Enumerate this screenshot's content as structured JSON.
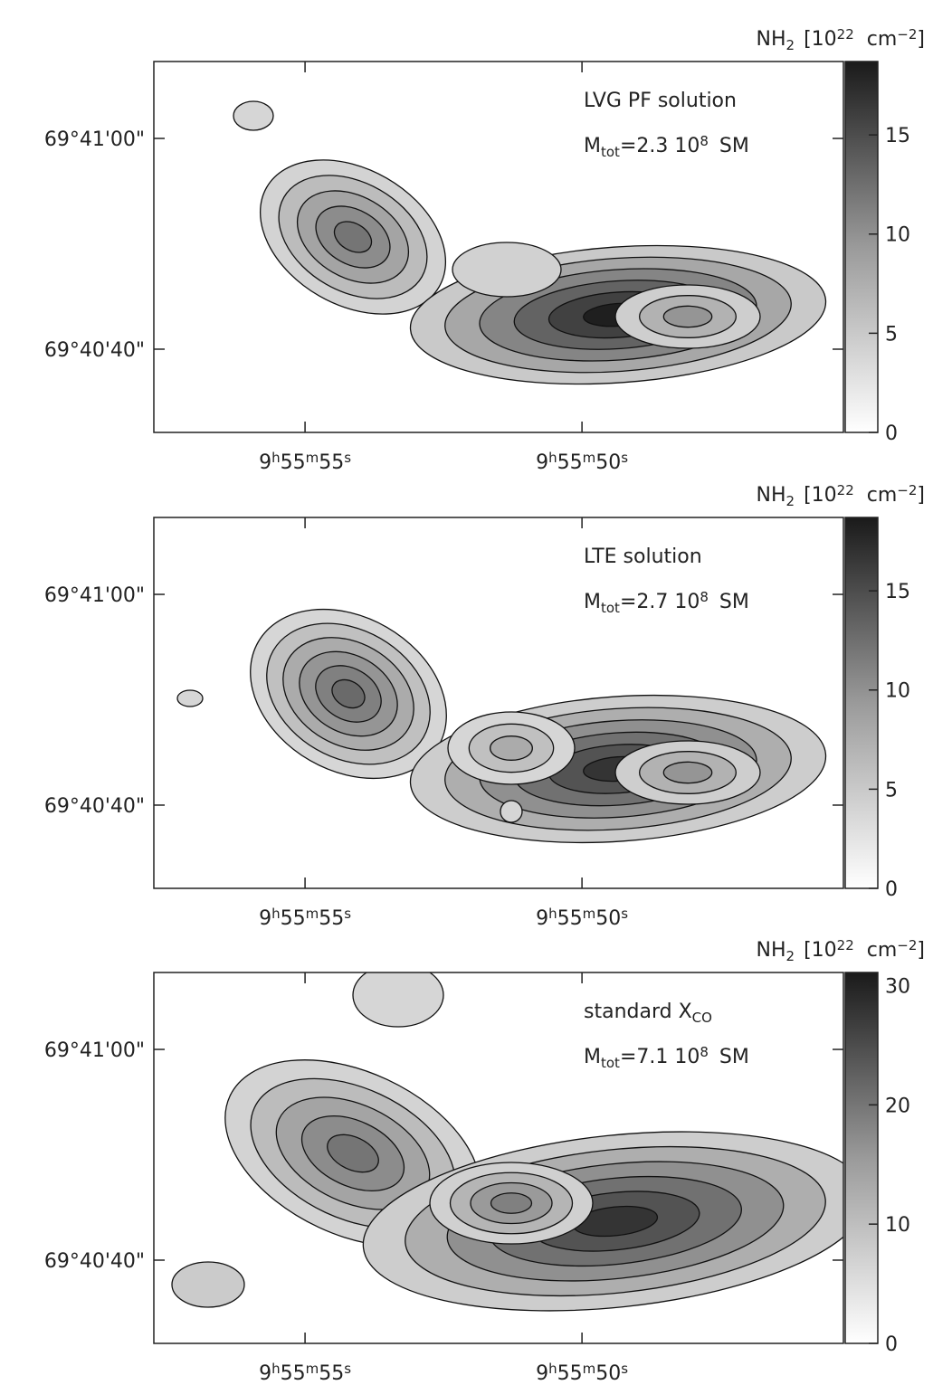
{
  "chart_data": [
    {
      "type": "contour",
      "title": "LVG PF solution",
      "mass": {
        "symbol": "M",
        "subscript": "tot",
        "value": "=2.3 10",
        "exponent": "8",
        "unit": "SM"
      },
      "colorbar_label": {
        "symbol": "NH",
        "subscript": "2",
        "open": "[10",
        "exponent": "22",
        "unit": "cm",
        "unit_exponent": "−2",
        "close": "]"
      },
      "xlim": [
        57.73,
        45.28
      ],
      "xticks": [
        {
          "value": 55,
          "label": [
            "9",
            "h",
            "55",
            "m",
            "55",
            "s"
          ]
        },
        {
          "value": 50,
          "label": [
            "9",
            "h",
            "55",
            "m",
            "50",
            "s"
          ]
        }
      ],
      "ylim": [
        32.1,
        67.3
      ],
      "yticks": [
        {
          "value": 40,
          "label": "69°40'40\""
        },
        {
          "value": 60,
          "label": "69°41'00\""
        }
      ],
      "clim": [
        0,
        18.7
      ],
      "cticks": [
        0,
        5,
        10,
        15
      ]
    },
    {
      "type": "contour",
      "title": "LTE solution",
      "mass": {
        "symbol": "M",
        "subscript": "tot",
        "value": "=2.7 10",
        "exponent": "8",
        "unit": "SM"
      },
      "colorbar_label": {
        "symbol": "NH",
        "subscript": "2",
        "open": "[10",
        "exponent": "22",
        "unit": "cm",
        "unit_exponent": "−2",
        "close": "]"
      },
      "xlim": [
        57.73,
        45.28
      ],
      "xticks": [
        {
          "value": 55,
          "label": [
            "9",
            "h",
            "55",
            "m",
            "55",
            "s"
          ]
        },
        {
          "value": 50,
          "label": [
            "9",
            "h",
            "55",
            "m",
            "50",
            "s"
          ]
        }
      ],
      "ylim": [
        32.1,
        67.3
      ],
      "yticks": [
        {
          "value": 40,
          "label": "69°40'40\""
        },
        {
          "value": 60,
          "label": "69°41'00\""
        }
      ],
      "clim": [
        0,
        18.7
      ],
      "cticks": [
        0,
        5,
        10,
        15
      ]
    },
    {
      "type": "contour",
      "title": "standard X",
      "title_subscript": "CO",
      "mass": {
        "symbol": "M",
        "subscript": "tot",
        "value": "=7.1 10",
        "exponent": "8",
        "unit": "SM"
      },
      "colorbar_label": {
        "symbol": "NH",
        "subscript": "2",
        "open": "[10",
        "exponent": "22",
        "unit": "cm",
        "unit_exponent": "−2",
        "close": "]"
      },
      "xlim": [
        57.73,
        45.28
      ],
      "xticks": [
        {
          "value": 55,
          "label": [
            "9",
            "h",
            "55",
            "m",
            "55",
            "s"
          ]
        },
        {
          "value": 50,
          "label": [
            "9",
            "h",
            "55",
            "m",
            "50",
            "s"
          ]
        }
      ],
      "ylim": [
        32.1,
        67.3
      ],
      "yticks": [
        {
          "value": 40,
          "label": "69°40'40\""
        },
        {
          "value": 60,
          "label": "69°41'00\""
        }
      ],
      "clim": [
        0,
        31.1
      ],
      "cticks": [
        0,
        10,
        20,
        30
      ]
    }
  ]
}
